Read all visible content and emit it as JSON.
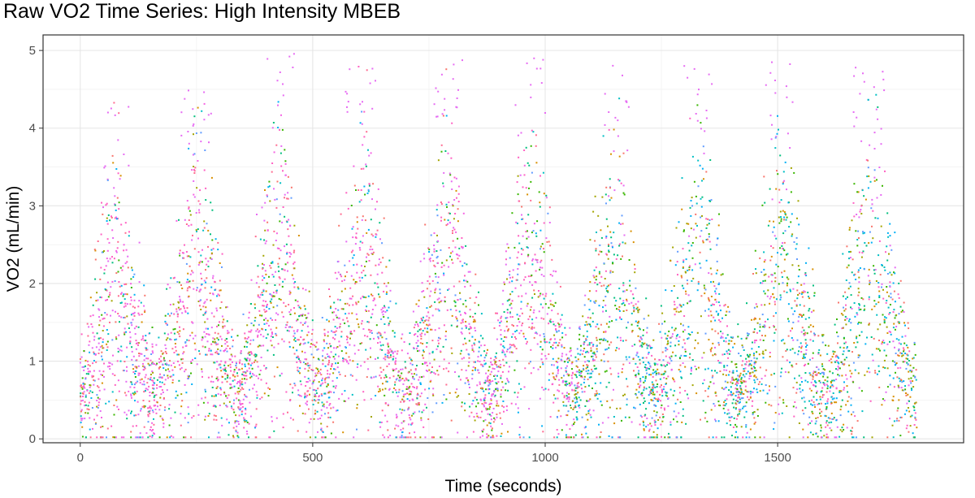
{
  "chart_data": {
    "type": "scatter",
    "title": "Raw VO2 Time Series: High Intensity MBEB",
    "xlabel": "Time (seconds)",
    "ylabel": "VO2 (mL/min)",
    "xlim": [
      -80,
      1900
    ],
    "ylim": [
      -0.05,
      5.2
    ],
    "x_ticks": [
      0,
      500,
      1000,
      1500
    ],
    "x_tick_labels": [
      "0",
      "500",
      "1000",
      "1500"
    ],
    "y_ticks": [
      0,
      1,
      2,
      3,
      4,
      5
    ],
    "y_tick_labels": [
      "0",
      "1",
      "2",
      "3",
      "4",
      "5"
    ],
    "grid": true,
    "legend": "none",
    "series_colors": [
      "#f8766d",
      "#e76bf3",
      "#ff61c3",
      "#00b0f6",
      "#00bf7d",
      "#619cff",
      "#39b600",
      "#00bfc4",
      "#a3a500",
      "#d89000"
    ],
    "cycles": [
      {
        "start": 0,
        "peak": 75,
        "end": 165,
        "peak_vo2": 3.2,
        "max_vo2": 4.4
      },
      {
        "start": 165,
        "peak": 250,
        "end": 340,
        "peak_vo2": 3.8,
        "max_vo2": 4.6
      },
      {
        "start": 340,
        "peak": 430,
        "end": 515,
        "peak_vo2": 4.0,
        "max_vo2": 5.0
      },
      {
        "start": 515,
        "peak": 605,
        "end": 700,
        "peak_vo2": 4.1,
        "max_vo2": 4.85
      },
      {
        "start": 700,
        "peak": 790,
        "end": 880,
        "peak_vo2": 4.0,
        "max_vo2": 4.9
      },
      {
        "start": 880,
        "peak": 970,
        "end": 1060,
        "peak_vo2": 3.9,
        "max_vo2": 5.0
      },
      {
        "start": 1060,
        "peak": 1150,
        "end": 1235,
        "peak_vo2": 3.7,
        "max_vo2": 4.9
      },
      {
        "start": 1235,
        "peak": 1330,
        "end": 1420,
        "peak_vo2": 3.8,
        "max_vo2": 4.85
      },
      {
        "start": 1420,
        "peak": 1510,
        "end": 1605,
        "peak_vo2": 3.7,
        "max_vo2": 4.95
      },
      {
        "start": 1605,
        "peak": 1700,
        "end": 1800,
        "peak_vo2": 3.8,
        "max_vo2": 4.8
      }
    ]
  }
}
